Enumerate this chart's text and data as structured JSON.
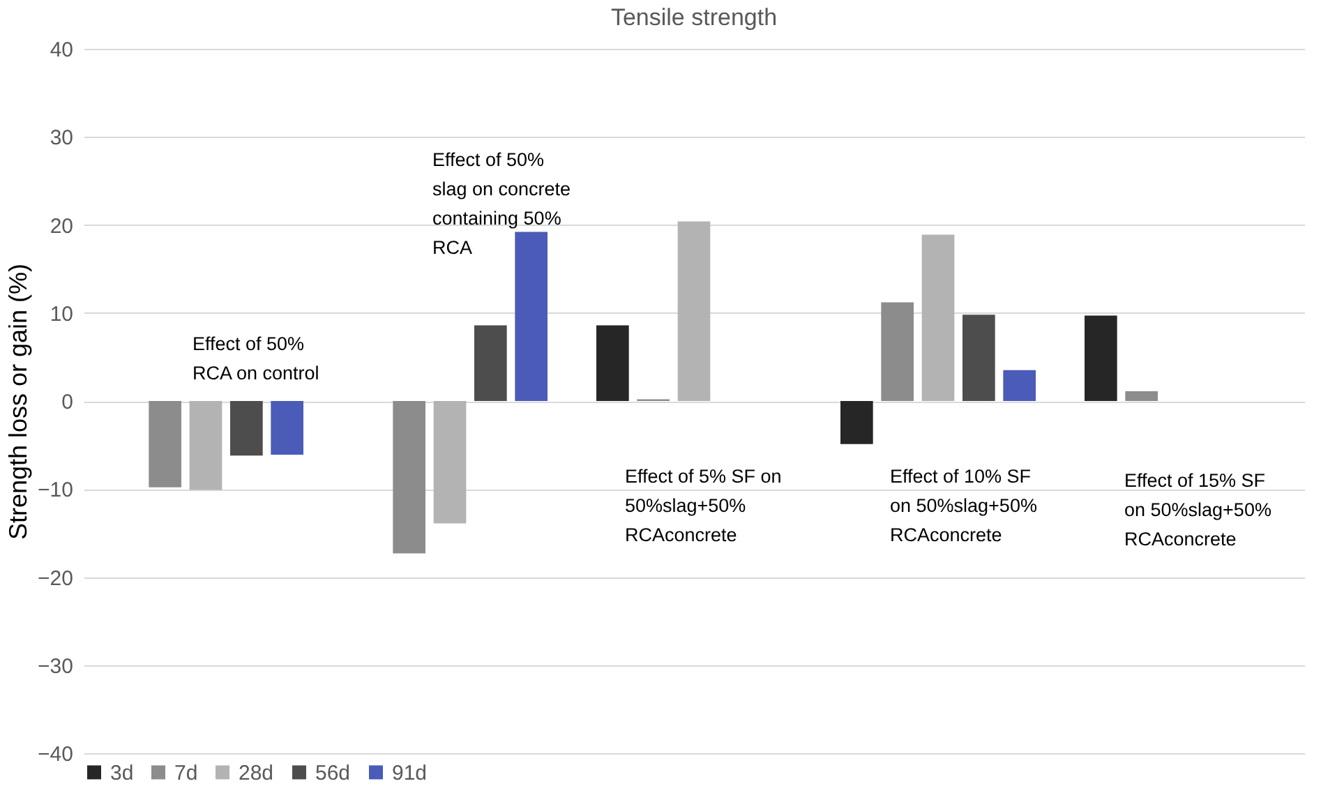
{
  "chart_data": {
    "type": "bar",
    "title": "Tensile strength",
    "ylabel": "Strength loss or gain (%)",
    "categories": [
      null,
      null,
      null,
      null,
      null
    ],
    "series": [
      {
        "name": "3d",
        "color": "#262626",
        "values": [
          null,
          null,
          8.6,
          -4.9,
          9.7
        ]
      },
      {
        "name": "7d",
        "color": "#8c8c8c",
        "values": [
          -9.8,
          -17.3,
          0.2,
          11.2,
          1.1
        ]
      },
      {
        "name": "28d",
        "color": "#b3b3b3",
        "values": [
          -10.1,
          -13.9,
          20.4,
          18.9,
          null
        ]
      },
      {
        "name": "56d",
        "color": "#4d4d4d",
        "values": [
          -6.2,
          8.6,
          null,
          9.8,
          null
        ]
      },
      {
        "name": "91d",
        "color": "#4a5bb8",
        "values": [
          -6.1,
          19.2,
          null,
          3.5,
          null
        ]
      }
    ],
    "ylim": [
      -40,
      40
    ],
    "yticks": [
      -40,
      -30,
      -20,
      -10,
      0,
      10,
      20,
      30,
      40
    ],
    "grid": "y",
    "legend": "bottom",
    "annotations": [
      "Effect of 50%\nRCA on control",
      "Effect of 50%\nslag on concrete\ncontaining 50%\nRCA",
      "Effect of 5% SF on\n50%slag+50%\nRCAconcrete",
      "Effect of 10% SF\non 50%slag+50%\nRCAconcrete",
      "Effect of 15% SF\non 50%slag+50%\nRCAconcrete"
    ]
  }
}
